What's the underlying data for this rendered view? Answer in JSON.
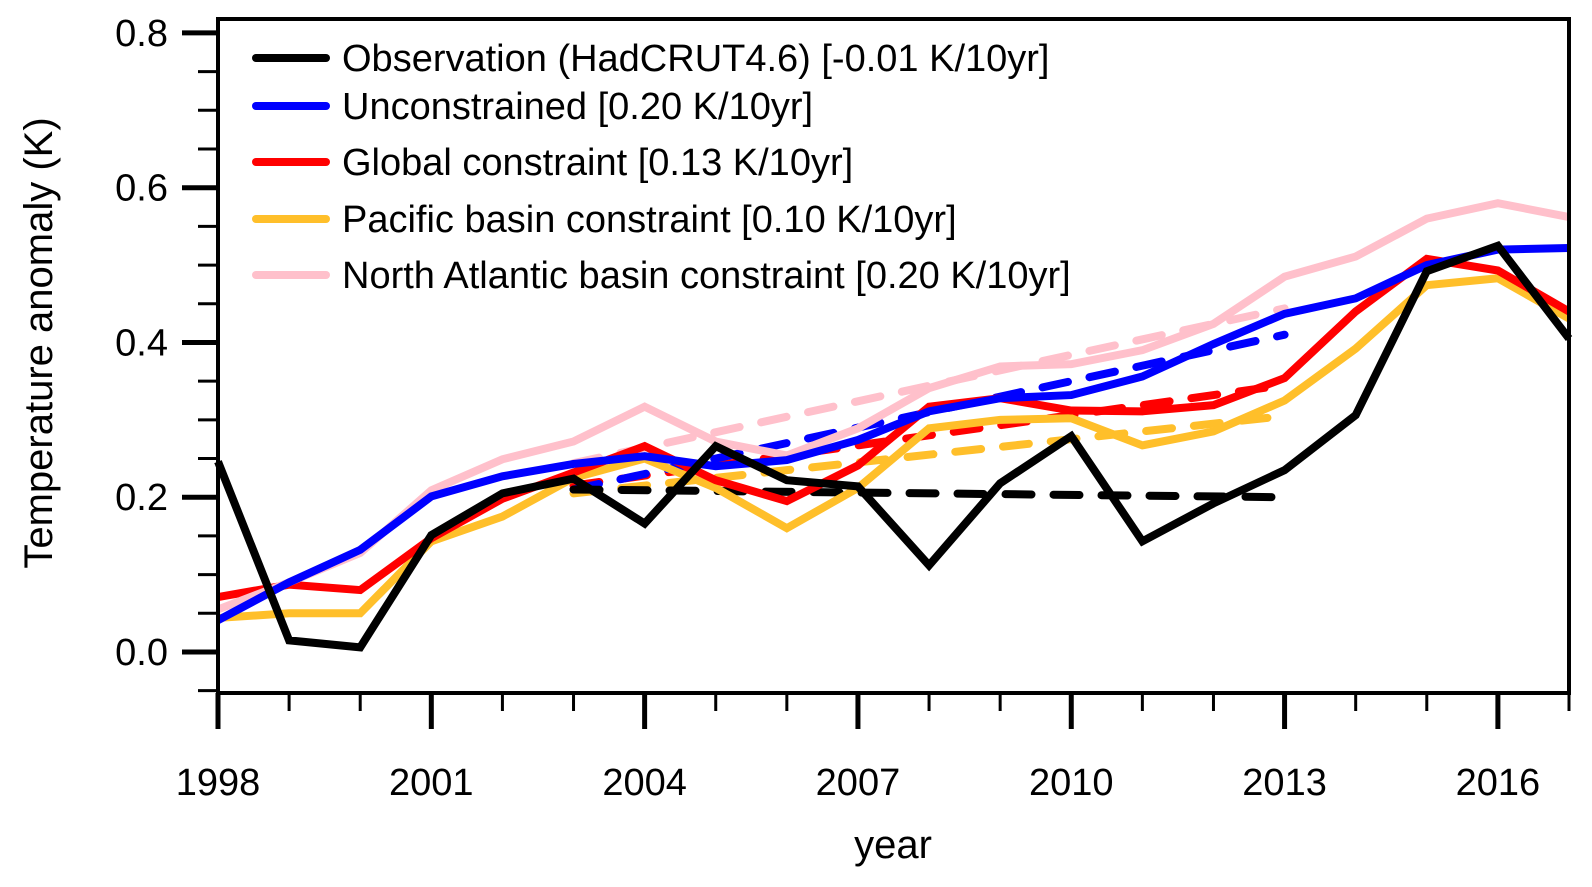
{
  "chart_data": {
    "type": "line",
    "title": "",
    "xlabel": "year",
    "ylabel": "Temperature anomaly (K)",
    "xlim": [
      1998,
      2017
    ],
    "ylim": [
      -0.053,
      0.818
    ],
    "x_ticks": [
      1998,
      2001,
      2004,
      2007,
      2010,
      2013,
      2016
    ],
    "x_tick_labels": [
      "1998",
      "2001",
      "2004",
      "2007",
      "2010",
      "2013",
      "2016"
    ],
    "x_minor_step": 1,
    "y_ticks": [
      0.0,
      0.2,
      0.4,
      0.6,
      0.8
    ],
    "y_tick_labels": [
      "0.0",
      "0.2",
      "0.4",
      "0.6",
      "0.8"
    ],
    "y_minor_step": 0.05,
    "grid": false,
    "legend_placement": "top-left",
    "x": [
      1998,
      1999,
      2000,
      2001,
      2002,
      2003,
      2004,
      2005,
      2006,
      2007,
      2008,
      2009,
      2010,
      2011,
      2012,
      2013,
      2014,
      2015,
      2016,
      2017
    ],
    "series": [
      {
        "name": "Pacific basin constraint [0.10 K/10yr]",
        "color": "#ffbf2a",
        "values": [
          0.044,
          0.05,
          0.05,
          0.143,
          0.175,
          0.225,
          0.25,
          0.212,
          0.16,
          0.212,
          0.289,
          0.3,
          0.302,
          0.267,
          0.285,
          0.325,
          0.392,
          0.474,
          0.483,
          0.431
        ],
        "trend": {
          "x": [
            2003,
            2013
          ],
          "y": [
            0.205,
            0.305
          ]
        }
      },
      {
        "name": "Global constraint [0.13 K/10yr]",
        "color": "#ff0000",
        "values": [
          0.071,
          0.087,
          0.08,
          0.147,
          0.198,
          0.232,
          0.266,
          0.222,
          0.195,
          0.241,
          0.317,
          0.328,
          0.312,
          0.311,
          0.319,
          0.354,
          0.44,
          0.508,
          0.493,
          0.44
        ],
        "trend": {
          "x": [
            2003,
            2013
          ],
          "y": [
            0.215,
            0.345
          ]
        }
      },
      {
        "name": "North Atlantic basin constraint [0.20 K/10yr]",
        "color": "#ffc0cb",
        "values": [
          0.055,
          0.09,
          0.128,
          0.209,
          0.249,
          0.272,
          0.317,
          0.272,
          0.254,
          0.289,
          0.341,
          0.369,
          0.372,
          0.39,
          0.424,
          0.485,
          0.511,
          0.56,
          0.58,
          0.562
        ],
        "trend": {
          "x": [
            2003,
            2013
          ],
          "y": [
            0.244,
            0.444
          ]
        }
      },
      {
        "name": "Unconstrained [0.20 K/10yr]",
        "color": "#0000ff",
        "values": [
          0.041,
          0.09,
          0.132,
          0.201,
          0.227,
          0.243,
          0.253,
          0.24,
          0.248,
          0.274,
          0.311,
          0.328,
          0.332,
          0.356,
          0.398,
          0.437,
          0.457,
          0.5,
          0.52,
          0.522
        ],
        "trend": {
          "x": [
            2003,
            2013
          ],
          "y": [
            0.21,
            0.41
          ]
        }
      },
      {
        "name": "Observation (HadCRUT4.6) [-0.01 K/10yr]",
        "color": "#000000",
        "values": [
          0.246,
          0.015,
          0.006,
          0.151,
          0.205,
          0.224,
          0.166,
          0.266,
          0.222,
          0.214,
          0.112,
          0.218,
          0.279,
          0.143,
          0.192,
          0.235,
          0.306,
          0.492,
          0.525,
          0.405
        ],
        "trend": {
          "x": [
            2003,
            2013
          ],
          "y": [
            0.21,
            0.2
          ]
        }
      }
    ],
    "legend": [
      {
        "label": "Observation (HadCRUT4.6) [-0.01 K/10yr]",
        "color": "#000000"
      },
      {
        "label": "Unconstrained [0.20 K/10yr]",
        "color": "#0000ff"
      },
      {
        "label": "Global constraint [0.13 K/10yr]",
        "color": "#ff0000"
      },
      {
        "label": "Pacific basin constraint [0.10 K/10yr]",
        "color": "#ffbf2a"
      },
      {
        "label": "North Atlantic basin constraint [0.20 K/10yr]",
        "color": "#ffc0cb"
      }
    ]
  }
}
